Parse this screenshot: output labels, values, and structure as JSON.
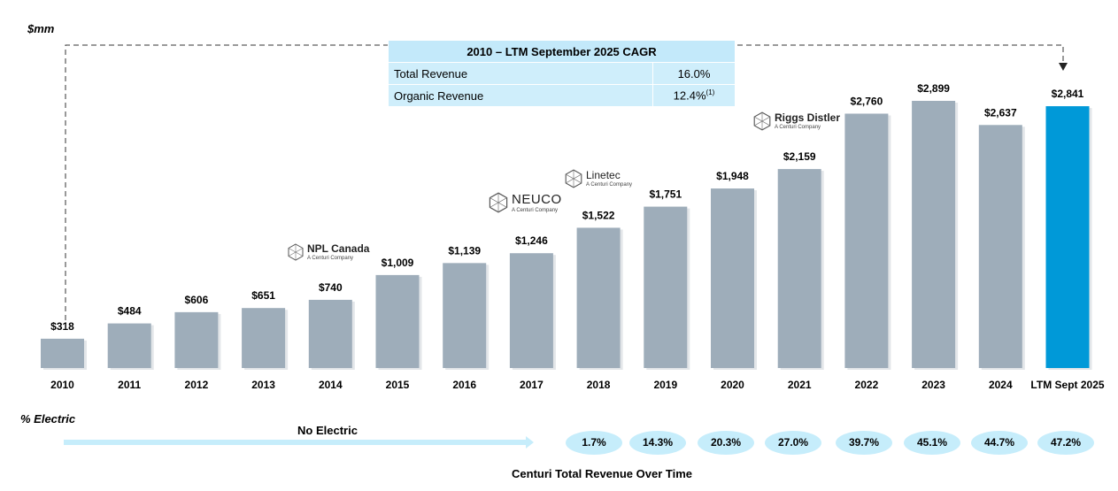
{
  "unit_label": "$mm",
  "chart_data": {
    "type": "bar",
    "title": "Centuri Total Revenue Over Time",
    "categories": [
      "2010",
      "2011",
      "2012",
      "2013",
      "2014",
      "2015",
      "2016",
      "2017",
      "2018",
      "2019",
      "2020",
      "2021",
      "2022",
      "2023",
      "2024",
      "LTM Sept 2025"
    ],
    "values": [
      318,
      484,
      606,
      651,
      740,
      1009,
      1139,
      1246,
      1522,
      1751,
      1948,
      2159,
      2760,
      2899,
      2637,
      2841
    ],
    "value_labels": [
      "$318",
      "$484",
      "$606",
      "$651",
      "$740",
      "$1,009",
      "$1,139",
      "$1,246",
      "$1,522",
      "$1,751",
      "$1,948",
      "$2,159",
      "$2,760",
      "$2,899",
      "$2,637",
      "$2,841"
    ],
    "ylabel": "$mm",
    "ylim": [
      0,
      2899
    ],
    "highlight_index": 15,
    "colors": {
      "default": "#9eadba",
      "highlight": "#0099d8"
    }
  },
  "cagr_table": {
    "title": "2010 – LTM September 2025 CAGR",
    "rows": [
      {
        "label": "Total Revenue",
        "value": "16.0%",
        "note": ""
      },
      {
        "label": "Organic Revenue",
        "value": "12.4%",
        "note": "(1)"
      }
    ]
  },
  "acquisitions": [
    {
      "name": "NPL Canada",
      "sub": "A Centuri Company"
    },
    {
      "name": "NEUCO",
      "sub": "A Centuri Company"
    },
    {
      "name": "Linetec",
      "sub": "A Centuri Company"
    },
    {
      "name": "Riggs Distler",
      "sub": "A Centuri Company"
    }
  ],
  "electric": {
    "label": "% Electric",
    "no_electric_label": "No Electric",
    "percentages": [
      "1.7%",
      "14.3%",
      "20.3%",
      "27.0%",
      "39.7%",
      "45.1%",
      "44.7%",
      "47.2%"
    ]
  },
  "colors": {
    "arrow": "#c6edfb",
    "cagr_bg": "#cfeefb"
  }
}
